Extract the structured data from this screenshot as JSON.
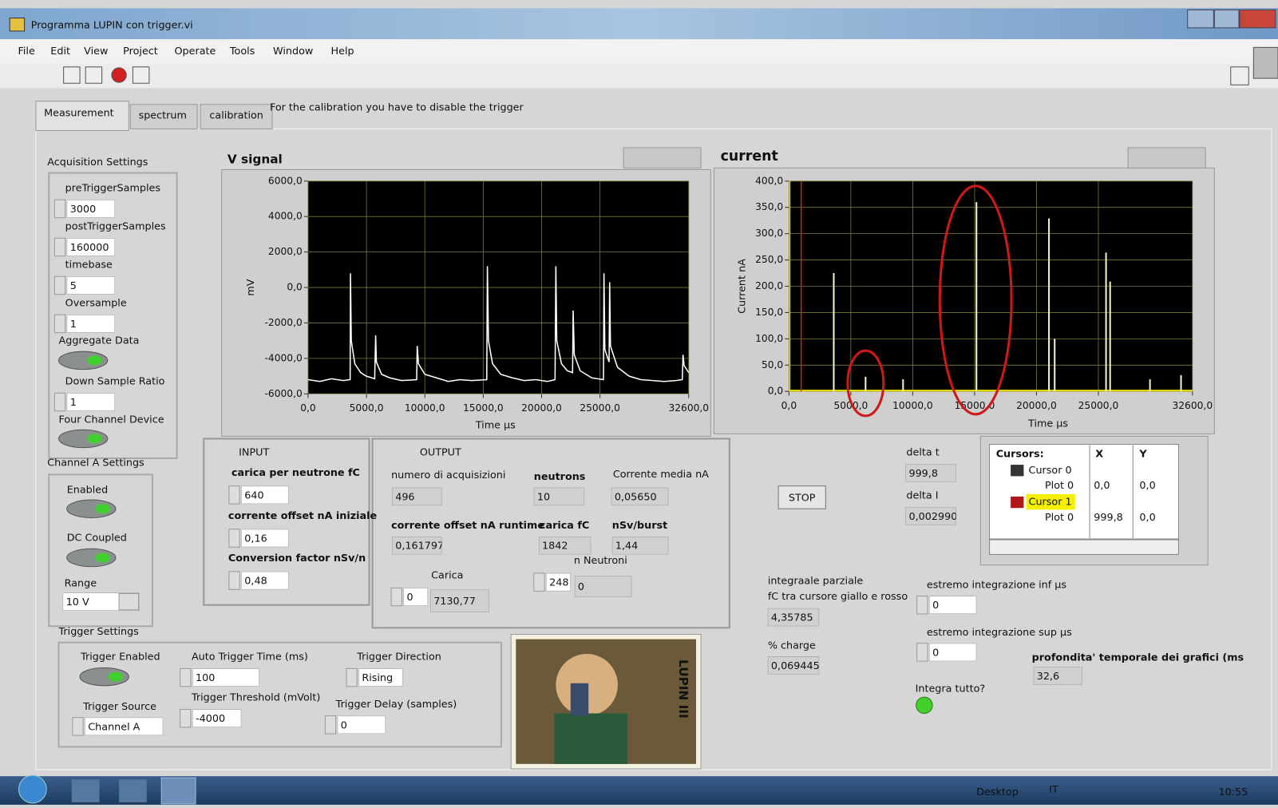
{
  "window": {
    "title": "Programma LUPIN con trigger.vi"
  },
  "menu": [
    "File",
    "Edit",
    "View",
    "Project",
    "Operate",
    "Tools",
    "Window",
    "Help"
  ],
  "tabs": [
    "Measurement",
    "spectrum",
    "calibration"
  ],
  "tab_note": "For the calibration you have to disable the trigger",
  "acquisition": {
    "title": "Acquisition Settings",
    "pre_trigger_samples": {
      "label": "preTriggerSamples",
      "value": "3000"
    },
    "post_trigger_samples": {
      "label": "postTriggerSamples",
      "value": "160000"
    },
    "timebase": {
      "label": "timebase",
      "value": "5"
    },
    "oversample": {
      "label": "Oversample",
      "value": "1"
    },
    "aggregate_data": {
      "label": "Aggregate Data"
    },
    "down_sample_ratio": {
      "label": "Down Sample Ratio",
      "value": "1"
    },
    "four_channel_device": {
      "label": "Four Channel Device"
    }
  },
  "channel_a": {
    "title": "Channel A Settings",
    "enabled": {
      "label": "Enabled"
    },
    "dc_coupled": {
      "label": "DC Coupled"
    },
    "range": {
      "label": "Range",
      "value": "10 V"
    }
  },
  "trigger": {
    "title": "Trigger Settings",
    "enabled": {
      "label": "Trigger Enabled"
    },
    "source": {
      "label": "Trigger Source",
      "value": "Channel A"
    },
    "auto_time": {
      "label": "Auto Trigger Time (ms)",
      "value": "100"
    },
    "threshold": {
      "label": "Trigger Threshold (mVolt)",
      "value": "-4000"
    },
    "direction": {
      "label": "Trigger Direction",
      "value": "Rising"
    },
    "delay": {
      "label": "Trigger Delay (samples)",
      "value": "0"
    }
  },
  "input": {
    "title": "INPUT",
    "charge_per_neutron": {
      "label": "carica per neutrone fC",
      "value": "640"
    },
    "offset_initial": {
      "label": "corrente offset nA iniziale",
      "value": "0,16"
    },
    "conversion": {
      "label": "Conversion factor nSv/n",
      "value": "0,48"
    }
  },
  "output": {
    "title": "OUTPUT",
    "acquisitions": {
      "label": "numero di acquisizioni",
      "value": "496"
    },
    "neutrons": {
      "label": "neutrons",
      "value": "10"
    },
    "mean_current": {
      "label": "Corrente media nA",
      "value": "0,05650"
    },
    "offset_runtime": {
      "label": "corrente offset nA runtime",
      "value": "0,161797"
    },
    "charge": {
      "label": "carica fC",
      "value": "1842"
    },
    "dose": {
      "label": "nSv/burst",
      "value": "1,44"
    },
    "carica": {
      "label": "Carica",
      "control": "0",
      "value": "7130,77"
    },
    "n_neutroni": {
      "label": "n Neutroni",
      "control": "248",
      "value": "0"
    }
  },
  "stop": "STOP",
  "delta_t": {
    "label": "delta t",
    "value": "999,8"
  },
  "delta_i": {
    "label": "delta I",
    "value": "0,002990"
  },
  "cursors": {
    "title": "Cursors:",
    "columns": [
      "X",
      "Y"
    ],
    "rows": [
      {
        "name": "Cursor 0",
        "plot": "Plot 0",
        "x": "0,0",
        "y": "0,0"
      },
      {
        "name": "Cursor 1",
        "plot": "Plot 0",
        "x": "999,8",
        "y": "0,0"
      }
    ]
  },
  "integral": {
    "label": "integraale parziale",
    "sublabel": "fC tra cursore giallo e rosso",
    "value": "4,35785"
  },
  "percent_charge": {
    "label": "% charge",
    "value": "0,069445"
  },
  "int_inf": {
    "label": "estremo integrazione inf µs",
    "value": "0"
  },
  "int_sup": {
    "label": "estremo integrazione sup µs",
    "value": "0"
  },
  "integra_tutto": {
    "label": "Integra tutto?"
  },
  "depth": {
    "label": "profondita'  temporale dei grafici (ms",
    "value": "32,6"
  },
  "image_caption": "LUPIN III",
  "taskbar": {
    "desktop": "Desktop",
    "language": "IT",
    "time": "10:55"
  },
  "charts": [
    {
      "type": "line",
      "title": "V signal",
      "x_label": "Time µs",
      "y_label": "mV",
      "xlim": [
        0,
        32600
      ],
      "ylim": [
        -6000,
        6000
      ],
      "xticks": [
        {
          "value": 0,
          "label": "0,0"
        },
        {
          "value": 5000,
          "label": "5000,0"
        },
        {
          "value": 10000,
          "label": "10000,0"
        },
        {
          "value": 15000,
          "label": "15000,0"
        },
        {
          "value": 20000,
          "label": "20000,0"
        },
        {
          "value": 25000,
          "label": "25000,0"
        },
        {
          "value": 32600,
          "label": "32600,0"
        }
      ],
      "yticks": [
        {
          "value": -6000,
          "label": "-6000,0"
        },
        {
          "value": -4000,
          "label": "-4000,0"
        },
        {
          "value": -2000,
          "label": "-2000,0"
        },
        {
          "value": 0,
          "label": "0,0"
        },
        {
          "value": 2000,
          "label": "2000,0"
        },
        {
          "value": 4000,
          "label": "4000,0"
        },
        {
          "value": 6000,
          "label": "6000,0"
        }
      ],
      "grid": true,
      "series": [
        {
          "color": "#ffffff",
          "x": [
            0,
            1000,
            2000,
            3000,
            3600,
            3630,
            3700,
            4000,
            4500,
            5000,
            5700,
            5790,
            5850,
            6300,
            7000,
            8000,
            9300,
            9350,
            9450,
            10000,
            11000,
            12000,
            13000,
            14000,
            15300,
            15360,
            15450,
            15800,
            16500,
            17500,
            18500,
            19500,
            20500,
            21150,
            21220,
            21300,
            21700,
            22200,
            22650,
            22700,
            22800,
            23300,
            24300,
            25300,
            25340,
            25420,
            25780,
            25830,
            25900,
            26500,
            27500,
            28500,
            29500,
            30500,
            31500,
            32050,
            32110,
            32200,
            32600
          ],
          "values": [
            -5200,
            -5300,
            -5150,
            -5250,
            -5200,
            800,
            -3000,
            -4300,
            -4800,
            -5000,
            -5150,
            -2700,
            -4200,
            -4900,
            -5100,
            -5250,
            -5200,
            -3300,
            -4300,
            -4900,
            -5100,
            -5300,
            -5200,
            -5250,
            -5200,
            1200,
            -3000,
            -4300,
            -4900,
            -5100,
            -5250,
            -5200,
            -5300,
            -5200,
            1200,
            -3000,
            -4300,
            -4700,
            -4800,
            -1300,
            -3800,
            -4700,
            -5100,
            -5200,
            800,
            -3500,
            -4200,
            300,
            -3300,
            -4500,
            -5000,
            -5200,
            -5250,
            -5300,
            -5250,
            -5200,
            -3800,
            -4400,
            -4800
          ]
        }
      ]
    },
    {
      "type": "stem",
      "title": "current",
      "x_label": "Time µs",
      "y_label": "Current nA",
      "xlim": [
        0,
        32600
      ],
      "ylim": [
        0,
        400
      ],
      "xticks": [
        {
          "value": 0,
          "label": "0,0"
        },
        {
          "value": 5000,
          "label": "5000,0"
        },
        {
          "value": 10000,
          "label": "10000,0"
        },
        {
          "value": 15000,
          "label": "15000,0"
        },
        {
          "value": 20000,
          "label": "20000,0"
        },
        {
          "value": 25000,
          "label": "25000,0"
        },
        {
          "value": 32600,
          "label": "32600,0"
        }
      ],
      "yticks": [
        {
          "value": 0,
          "label": "0,0"
        },
        {
          "value": 50,
          "label": "50,0"
        },
        {
          "value": 100,
          "label": "100,0"
        },
        {
          "value": 150,
          "label": "150,0"
        },
        {
          "value": 200,
          "label": "200,0"
        },
        {
          "value": 250,
          "label": "250,0"
        },
        {
          "value": 300,
          "label": "300,0"
        },
        {
          "value": 350,
          "label": "350,0"
        },
        {
          "value": 400,
          "label": "400,0"
        }
      ],
      "grid": true,
      "series": [
        {
          "color": "#f4f2c8",
          "x": [
            3620,
            6190,
            9220,
            15150,
            21010,
            21470,
            25620,
            25950,
            29170,
            31680
          ],
          "values": [
            225,
            28,
            23,
            360,
            329,
            100,
            264,
            209,
            23,
            31
          ]
        }
      ]
    }
  ]
}
